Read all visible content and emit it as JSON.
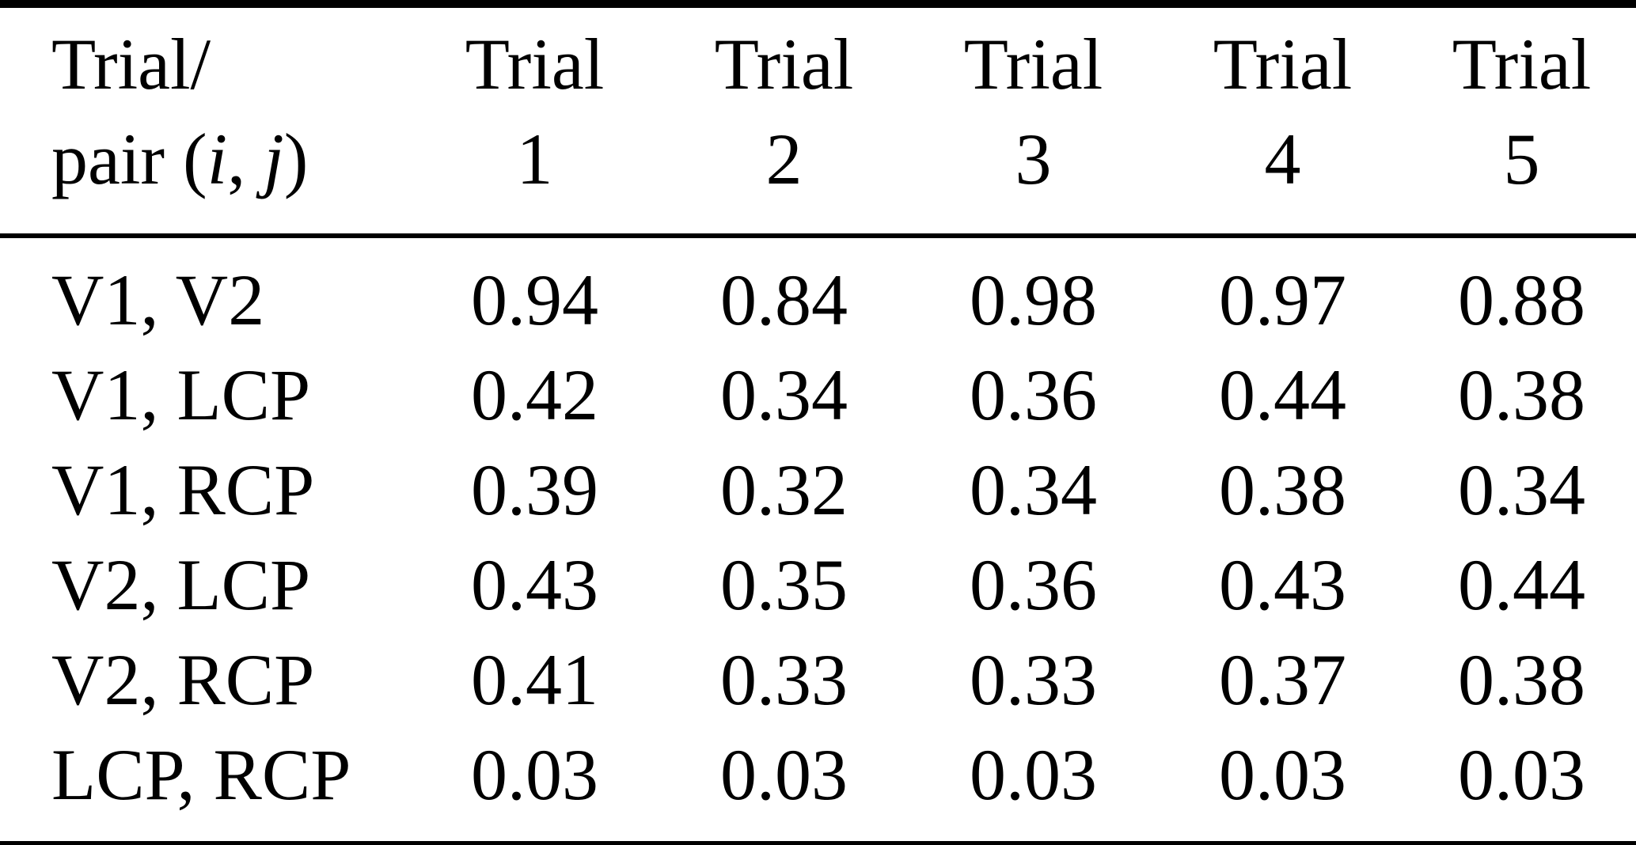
{
  "page": {
    "background": "#ffffff",
    "text_color": "#000000",
    "rule_color": "#000000"
  },
  "table": {
    "corner_header": {
      "line1": "Trial/",
      "line2_prefix": "pair (",
      "var_i": "i",
      "separator": ", ",
      "var_j": "j",
      "line2_suffix": ")"
    },
    "column_headers": [
      {
        "line1": "Trial",
        "line2": "1"
      },
      {
        "line1": "Trial",
        "line2": "2"
      },
      {
        "line1": "Trial",
        "line2": "3"
      },
      {
        "line1": "Trial",
        "line2": "4"
      },
      {
        "line1": "Trial",
        "line2": "5"
      }
    ],
    "rows": [
      {
        "label": "V1, V2",
        "values": [
          "0.94",
          "0.84",
          "0.98",
          "0.97",
          "0.88"
        ]
      },
      {
        "label": "V1, LCP",
        "values": [
          "0.42",
          "0.34",
          "0.36",
          "0.44",
          "0.38"
        ]
      },
      {
        "label": "V1, RCP",
        "values": [
          "0.39",
          "0.32",
          "0.34",
          "0.38",
          "0.34"
        ]
      },
      {
        "label": "V2, LCP",
        "values": [
          "0.43",
          "0.35",
          "0.36",
          "0.43",
          "0.44"
        ]
      },
      {
        "label": "V2, RCP",
        "values": [
          "0.41",
          "0.33",
          "0.33",
          "0.37",
          "0.38"
        ]
      },
      {
        "label": "LCP, RCP",
        "values": [
          "0.03",
          "0.03",
          "0.03",
          "0.03",
          "0.03"
        ]
      }
    ]
  }
}
